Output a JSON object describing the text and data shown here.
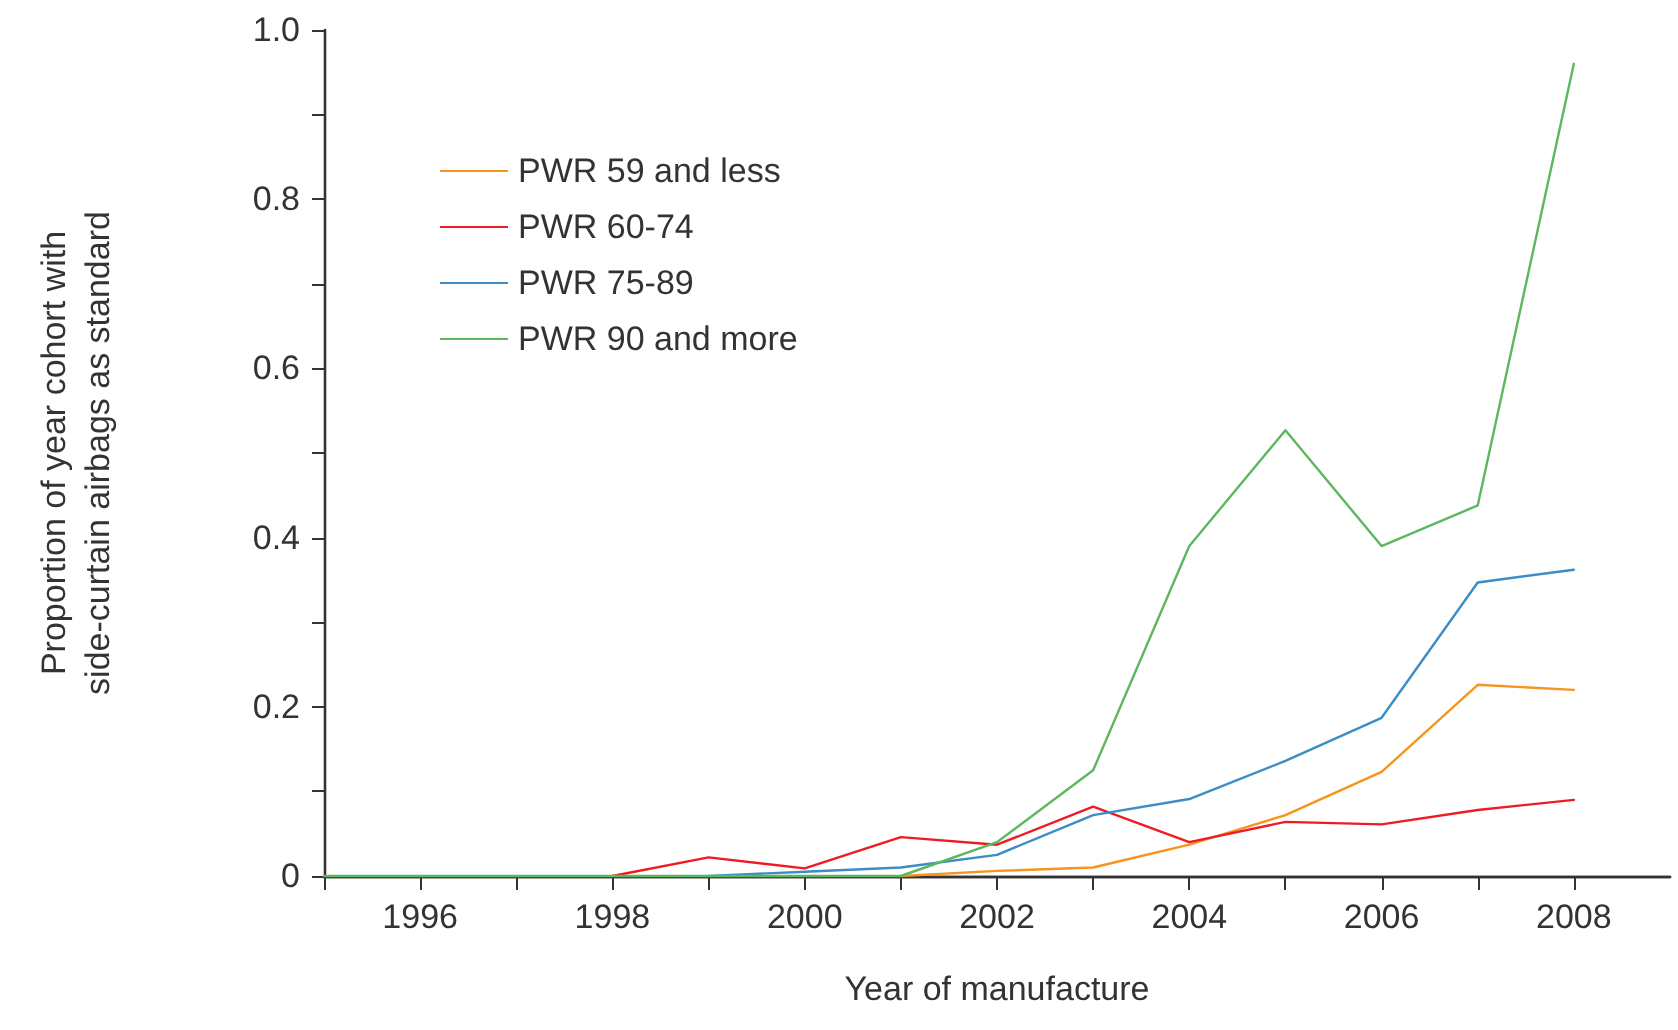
{
  "chart_data": {
    "type": "line",
    "xlabel": "Year of manufacture",
    "ylabel": "Proportion of year cohort with\nside-curtain airbags as standard",
    "x": [
      1995,
      1996,
      1997,
      1998,
      1999,
      2000,
      2001,
      2002,
      2003,
      2004,
      2005,
      2006,
      2007,
      2008
    ],
    "series": [
      {
        "name": "PWR 59 and less",
        "color": "#f7941d",
        "values": [
          null,
          null,
          null,
          null,
          null,
          null,
          0,
          0.006,
          0.01,
          0.037,
          0.072,
          0.123,
          0.226,
          0.22
        ]
      },
      {
        "name": "PWR 60-74",
        "color": "#ed1c24",
        "values": [
          null,
          null,
          null,
          0,
          0.022,
          0.009,
          0.046,
          0.037,
          0.082,
          0.04,
          0.064,
          0.061,
          0.078,
          0.09
        ]
      },
      {
        "name": "PWR 75-89",
        "color": "#3c8dc5",
        "values": [
          null,
          null,
          null,
          null,
          0,
          0.005,
          0.01,
          0.025,
          0.072,
          0.091,
          0.136,
          0.187,
          0.347,
          0.362
        ]
      },
      {
        "name": "PWR 90 and more",
        "color": "#5cb85c",
        "values": [
          0,
          0,
          0,
          0,
          0,
          0,
          0,
          0.04,
          0.125,
          0.39,
          0.527,
          0.39,
          0.438,
          0.96
        ]
      }
    ],
    "xlim": [
      1995,
      2009
    ],
    "xticks": [
      {
        "value": 1995,
        "label": null
      },
      1996,
      {
        "value": 1997,
        "label": null
      },
      1998,
      {
        "value": 1999,
        "label": null
      },
      2000,
      {
        "value": 2001,
        "label": null
      },
      2002,
      {
        "value": 2003,
        "label": null
      },
      2004,
      {
        "value": 2005,
        "label": null
      },
      2006,
      {
        "value": 2007,
        "label": null
      },
      2008
    ],
    "ylim": [
      0,
      1
    ],
    "yticks": [
      0,
      {
        "value": 0.1,
        "label": null
      },
      0.2,
      {
        "value": 0.3,
        "label": null
      },
      0.4,
      {
        "value": 0.5,
        "label": null
      },
      0.6,
      {
        "value": 0.7,
        "label": null
      },
      0.8,
      {
        "value": 0.9,
        "label": null
      },
      {
        "value": 1,
        "label": "1.0"
      }
    ],
    "grid": false,
    "legend": "top left",
    "marker": "none",
    "line_style": "solid"
  }
}
